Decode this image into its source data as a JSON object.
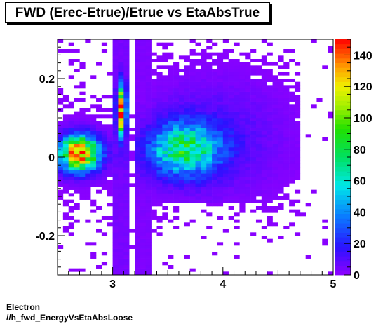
{
  "chart_data": {
    "type": "heatmap",
    "title": "FWD (Erec-Etrue)/Etrue vs EtaAbsTrue",
    "xlabel": "",
    "ylabel": "",
    "xlim": [
      2.5,
      5.0
    ],
    "ylim": [
      -0.3,
      0.3
    ],
    "x_ticks": [
      3,
      4,
      5
    ],
    "x_tick_labels": [
      "3",
      "4",
      "5"
    ],
    "y_ticks": [
      -0.2,
      0,
      0.2
    ],
    "y_tick_labels": [
      "-0.2",
      "0",
      "0.2"
    ],
    "z_range": [
      0,
      150
    ],
    "colorbar_ticks": [
      0,
      20,
      40,
      60,
      80,
      100,
      120,
      140
    ],
    "colorbar_tick_labels": [
      "0",
      "20",
      "40",
      "60",
      "80",
      "100",
      "120",
      "140"
    ],
    "grid": false,
    "clusters": [
      {
        "x": 2.7,
        "y": 0.01,
        "peak": 140
      },
      {
        "x": 3.08,
        "y": 0.12,
        "peak": 150
      },
      {
        "x": 3.65,
        "y": 0.02,
        "peak": 70
      }
    ]
  },
  "footer": {
    "line1": "Electron",
    "line2": "//h_fwd_EnergyVsEtaAbsLoose"
  }
}
